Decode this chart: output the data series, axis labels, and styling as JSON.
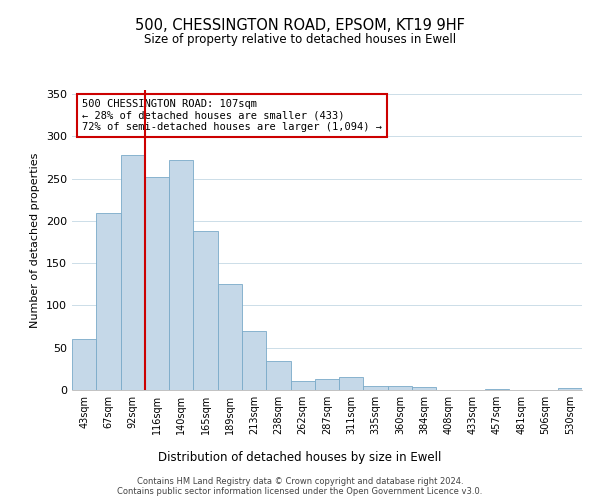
{
  "title": "500, CHESSINGTON ROAD, EPSOM, KT19 9HF",
  "subtitle": "Size of property relative to detached houses in Ewell",
  "xlabel": "Distribution of detached houses by size in Ewell",
  "ylabel": "Number of detached properties",
  "bar_labels": [
    "43sqm",
    "67sqm",
    "92sqm",
    "116sqm",
    "140sqm",
    "165sqm",
    "189sqm",
    "213sqm",
    "238sqm",
    "262sqm",
    "287sqm",
    "311sqm",
    "335sqm",
    "360sqm",
    "384sqm",
    "408sqm",
    "433sqm",
    "457sqm",
    "481sqm",
    "506sqm",
    "530sqm"
  ],
  "bar_values": [
    60,
    210,
    278,
    252,
    272,
    188,
    125,
    70,
    34,
    11,
    13,
    15,
    5,
    5,
    3,
    0,
    0,
    1,
    0,
    0,
    2
  ],
  "bar_color": "#c5d8e8",
  "bar_edge_color": "#7aaac8",
  "vline_color": "#cc0000",
  "annotation_lines": [
    "500 CHESSINGTON ROAD: 107sqm",
    "← 28% of detached houses are smaller (433)",
    "72% of semi-detached houses are larger (1,094) →"
  ],
  "annotation_box_color": "#cc0000",
  "ylim": [
    0,
    355
  ],
  "yticks": [
    0,
    50,
    100,
    150,
    200,
    250,
    300,
    350
  ],
  "footnote1": "Contains HM Land Registry data © Crown copyright and database right 2024.",
  "footnote2": "Contains public sector information licensed under the Open Government Licence v3.0."
}
